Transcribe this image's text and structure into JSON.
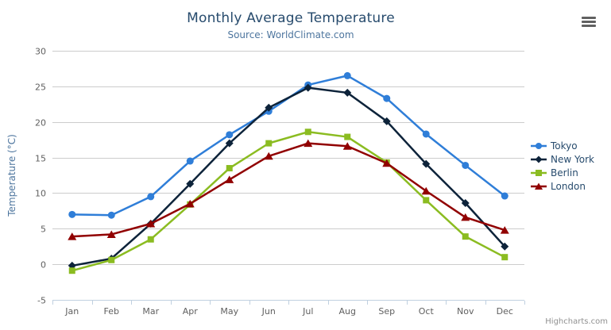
{
  "chart": {
    "credits_label": "Highcharts.com"
  },
  "chart_data": {
    "type": "line",
    "title": "Monthly Average Temperature",
    "subtitle": "Source: WorldClimate.com",
    "xlabel": "",
    "ylabel": "Temperature (°C)",
    "ylim": [
      -5,
      30
    ],
    "ytick_step": 5,
    "grid": true,
    "legend_position": "right-middle",
    "categories": [
      "Jan",
      "Feb",
      "Mar",
      "Apr",
      "May",
      "Jun",
      "Jul",
      "Aug",
      "Sep",
      "Oct",
      "Nov",
      "Dec"
    ],
    "series": [
      {
        "name": "Tokyo",
        "color": "#2f7ed8",
        "marker": "circle",
        "values": [
          7.0,
          6.9,
          9.5,
          14.5,
          18.2,
          21.5,
          25.2,
          26.5,
          23.3,
          18.3,
          13.9,
          9.6
        ]
      },
      {
        "name": "New York",
        "color": "#0d233a",
        "marker": "diamond",
        "values": [
          -0.2,
          0.8,
          5.7,
          11.3,
          17.0,
          22.0,
          24.8,
          24.1,
          20.1,
          14.1,
          8.6,
          2.5
        ]
      },
      {
        "name": "Berlin",
        "color": "#8bbc21",
        "marker": "square",
        "values": [
          -0.9,
          0.6,
          3.5,
          8.4,
          13.5,
          17.0,
          18.6,
          17.9,
          14.3,
          9.0,
          3.9,
          1.0
        ]
      },
      {
        "name": "London",
        "color": "#910000",
        "marker": "triangle",
        "values": [
          3.9,
          4.2,
          5.7,
          8.5,
          11.9,
          15.2,
          17.0,
          16.6,
          14.2,
          10.3,
          6.6,
          4.8
        ]
      }
    ],
    "style": {
      "grid_color": "#cccccc",
      "axis_line_color": "#c0d0e0",
      "tick_label_color": "#606060",
      "title_color": "#274b6d",
      "subtitle_color": "#4d759e",
      "legend_text_color": "#274b6d",
      "line_width": 2.5
    }
  }
}
